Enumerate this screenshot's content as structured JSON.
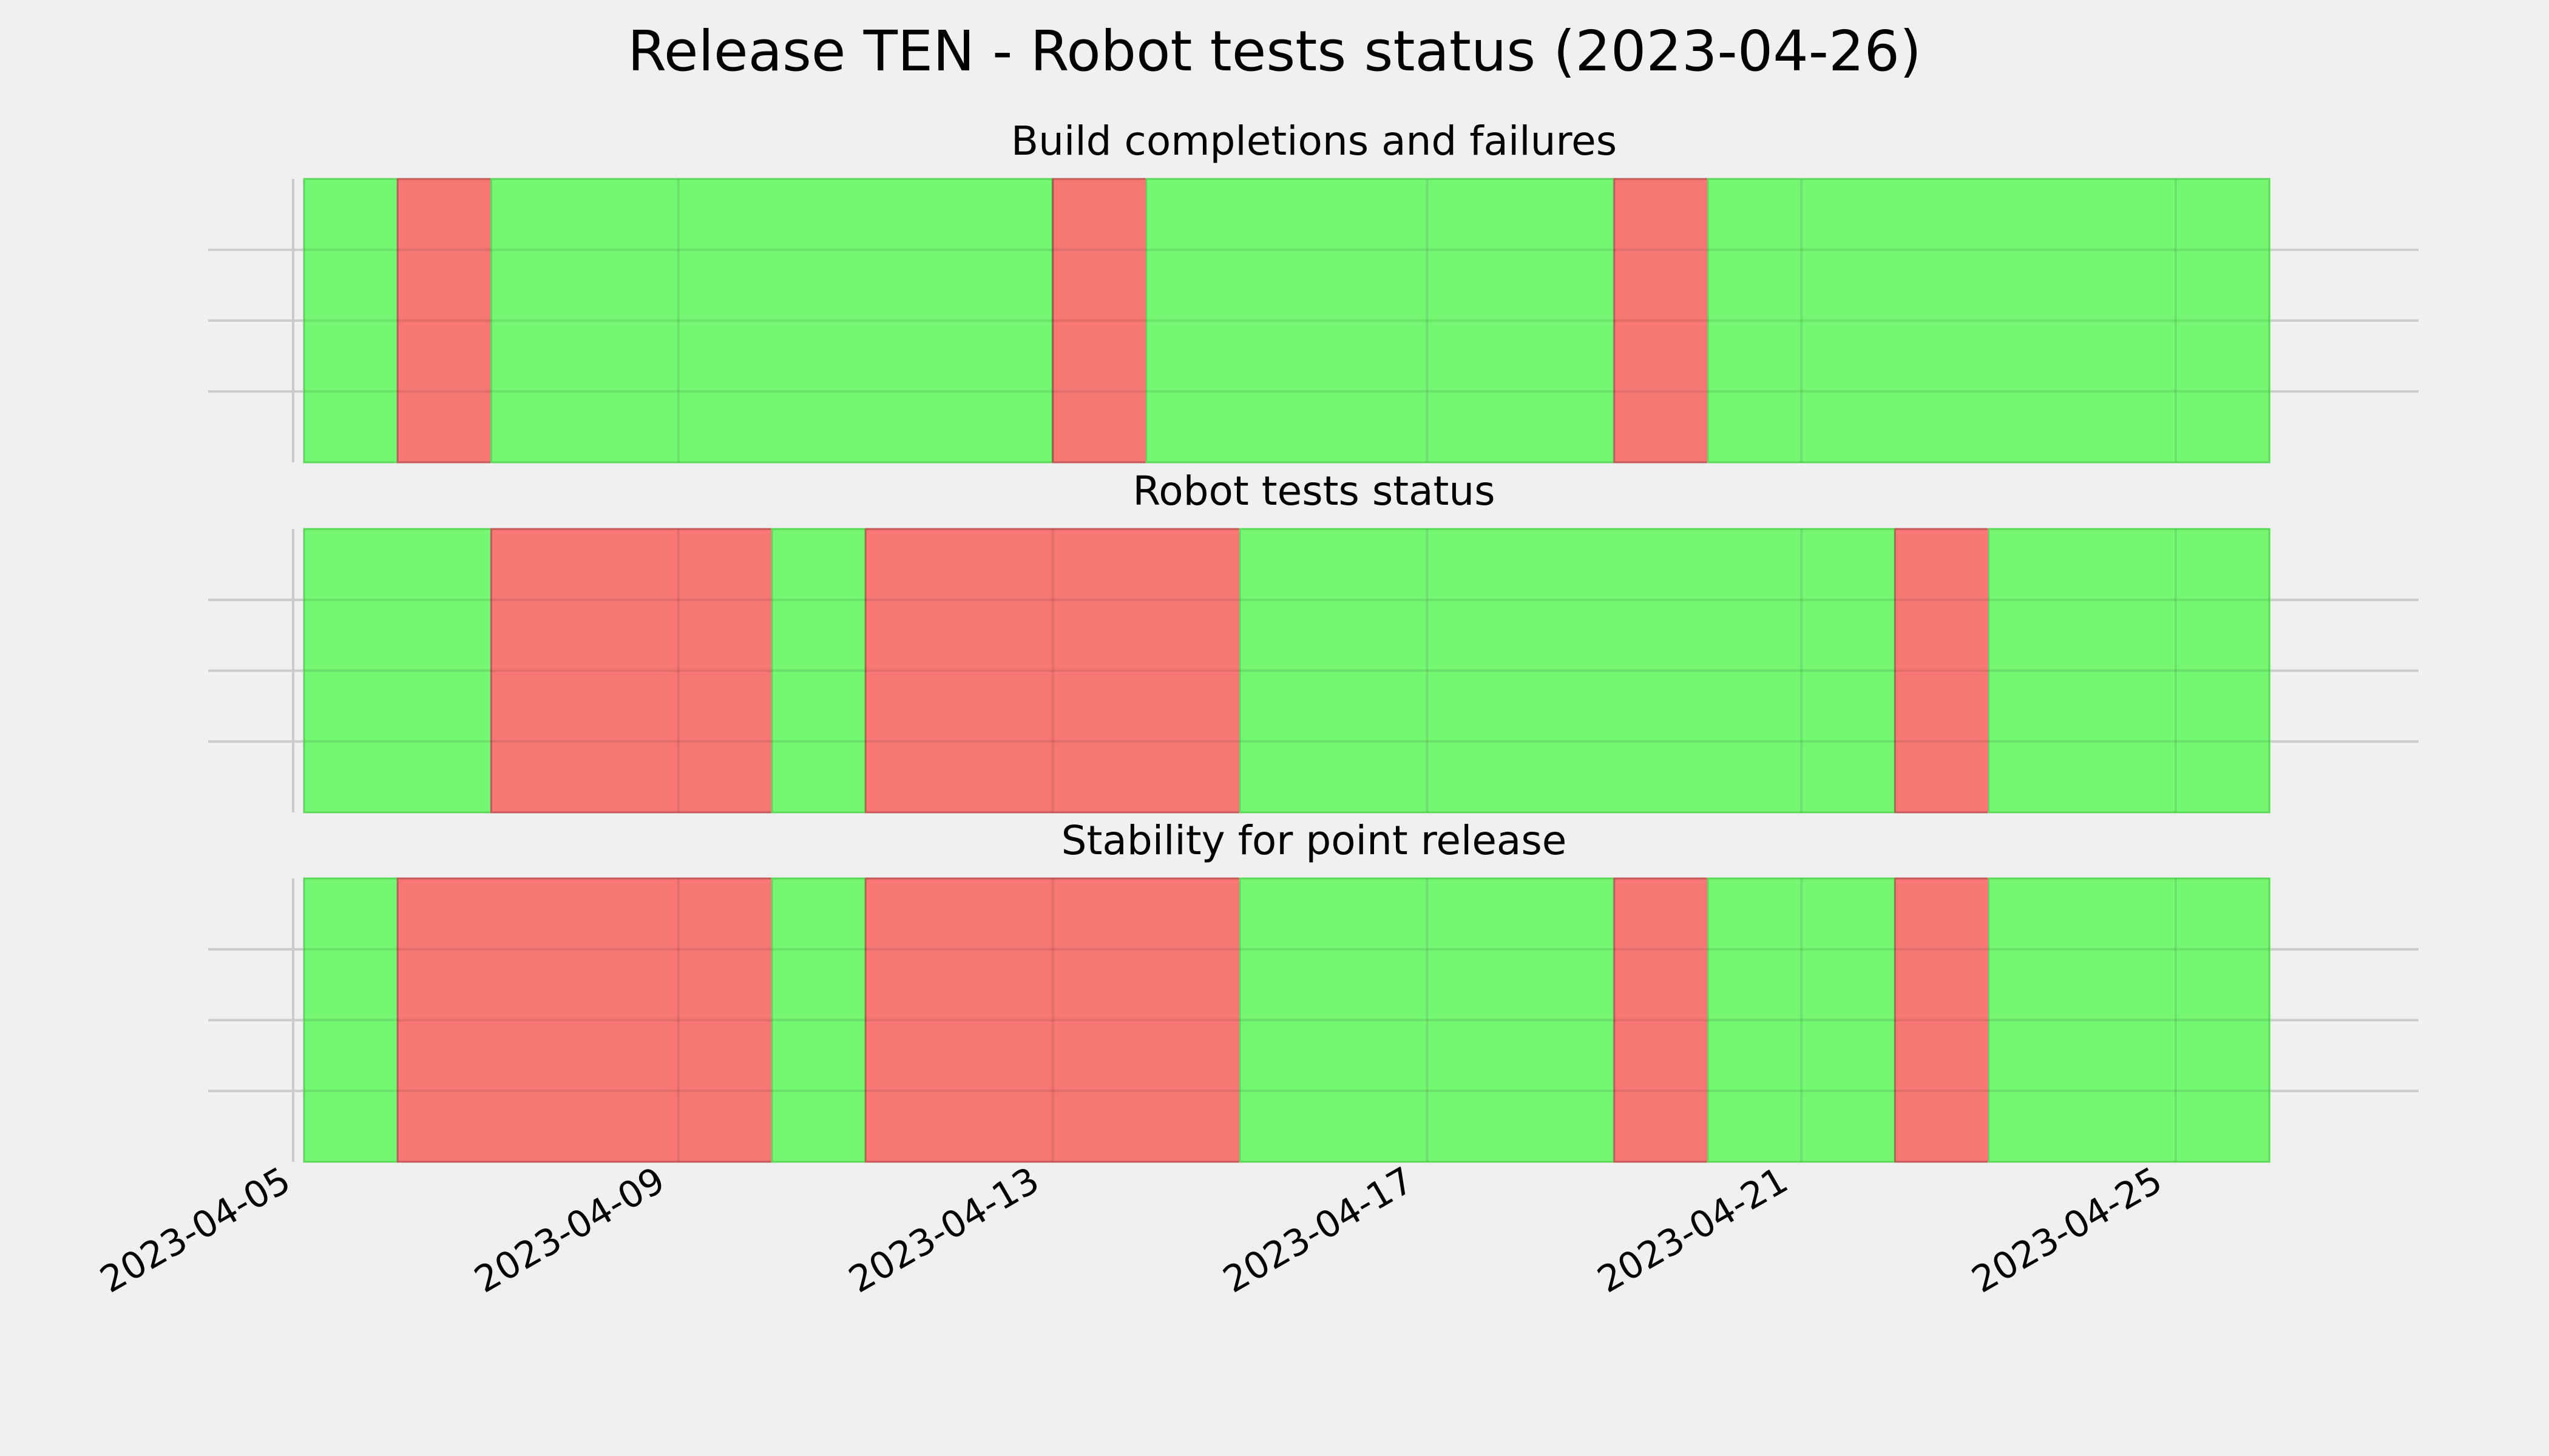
{
  "chart_data": {
    "type": "timeline",
    "title": "Release TEN - Robot tests status (2023-04-26)",
    "x_axis": {
      "min": "2023-04-05",
      "max": "2023-04-27",
      "ticks": [
        "2023-04-05",
        "2023-04-09",
        "2023-04-13",
        "2023-04-17",
        "2023-04-21",
        "2023-04-25"
      ]
    },
    "colors": {
      "pass": "#75f774",
      "fail": "#f77775",
      "pass_edge": "#5cd85c",
      "fail_edge": "#c45a5a",
      "background": "#f0f0f0",
      "grid": "#cbcbcb"
    },
    "panels": [
      {
        "title": "Build completions and failures",
        "segments": [
          {
            "start": "2023-04-05",
            "end": "2023-04-06",
            "status": "pass"
          },
          {
            "start": "2023-04-06",
            "end": "2023-04-07",
            "status": "fail"
          },
          {
            "start": "2023-04-07",
            "end": "2023-04-13",
            "status": "pass"
          },
          {
            "start": "2023-04-13",
            "end": "2023-04-14",
            "status": "fail"
          },
          {
            "start": "2023-04-14",
            "end": "2023-04-19",
            "status": "pass"
          },
          {
            "start": "2023-04-19",
            "end": "2023-04-20",
            "status": "fail"
          },
          {
            "start": "2023-04-20",
            "end": "2023-04-26",
            "status": "pass"
          }
        ]
      },
      {
        "title": "Robot tests status",
        "segments": [
          {
            "start": "2023-04-05",
            "end": "2023-04-07",
            "status": "pass"
          },
          {
            "start": "2023-04-07",
            "end": "2023-04-10",
            "status": "fail"
          },
          {
            "start": "2023-04-10",
            "end": "2023-04-11",
            "status": "pass"
          },
          {
            "start": "2023-04-11",
            "end": "2023-04-15",
            "status": "fail"
          },
          {
            "start": "2023-04-15",
            "end": "2023-04-22",
            "status": "pass"
          },
          {
            "start": "2023-04-22",
            "end": "2023-04-23",
            "status": "fail"
          },
          {
            "start": "2023-04-23",
            "end": "2023-04-26",
            "status": "pass"
          }
        ]
      },
      {
        "title": "Stability for point release",
        "segments": [
          {
            "start": "2023-04-05",
            "end": "2023-04-06",
            "status": "pass"
          },
          {
            "start": "2023-04-06",
            "end": "2023-04-10",
            "status": "fail"
          },
          {
            "start": "2023-04-10",
            "end": "2023-04-11",
            "status": "pass"
          },
          {
            "start": "2023-04-11",
            "end": "2023-04-15",
            "status": "fail"
          },
          {
            "start": "2023-04-15",
            "end": "2023-04-19",
            "status": "pass"
          },
          {
            "start": "2023-04-19",
            "end": "2023-04-20",
            "status": "fail"
          },
          {
            "start": "2023-04-20",
            "end": "2023-04-22",
            "status": "pass"
          },
          {
            "start": "2023-04-22",
            "end": "2023-04-23",
            "status": "fail"
          },
          {
            "start": "2023-04-23",
            "end": "2023-04-26",
            "status": "pass"
          }
        ]
      }
    ]
  }
}
